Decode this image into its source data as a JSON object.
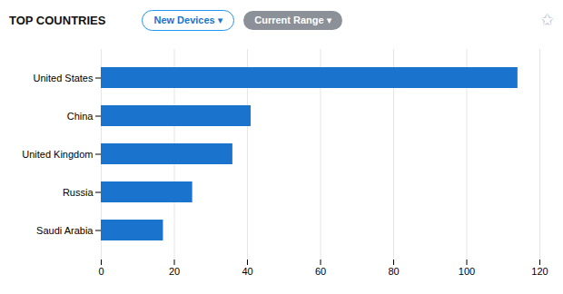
{
  "chart_data": {
    "type": "bar",
    "orientation": "horizontal",
    "title": "TOP COUNTRIES",
    "annotations": [
      "New Devices ▾",
      "Current Range ▾",
      "✩"
    ],
    "categories": [
      "United States",
      "China",
      "United Kingdom",
      "Russia",
      "Saudi Arabia"
    ],
    "values": [
      114,
      41,
      36,
      25,
      17
    ],
    "color": "#1a73cc",
    "xlim": [
      0,
      120
    ],
    "xticks": [
      0,
      20,
      40,
      60,
      80,
      100,
      120
    ],
    "grid": true
  }
}
